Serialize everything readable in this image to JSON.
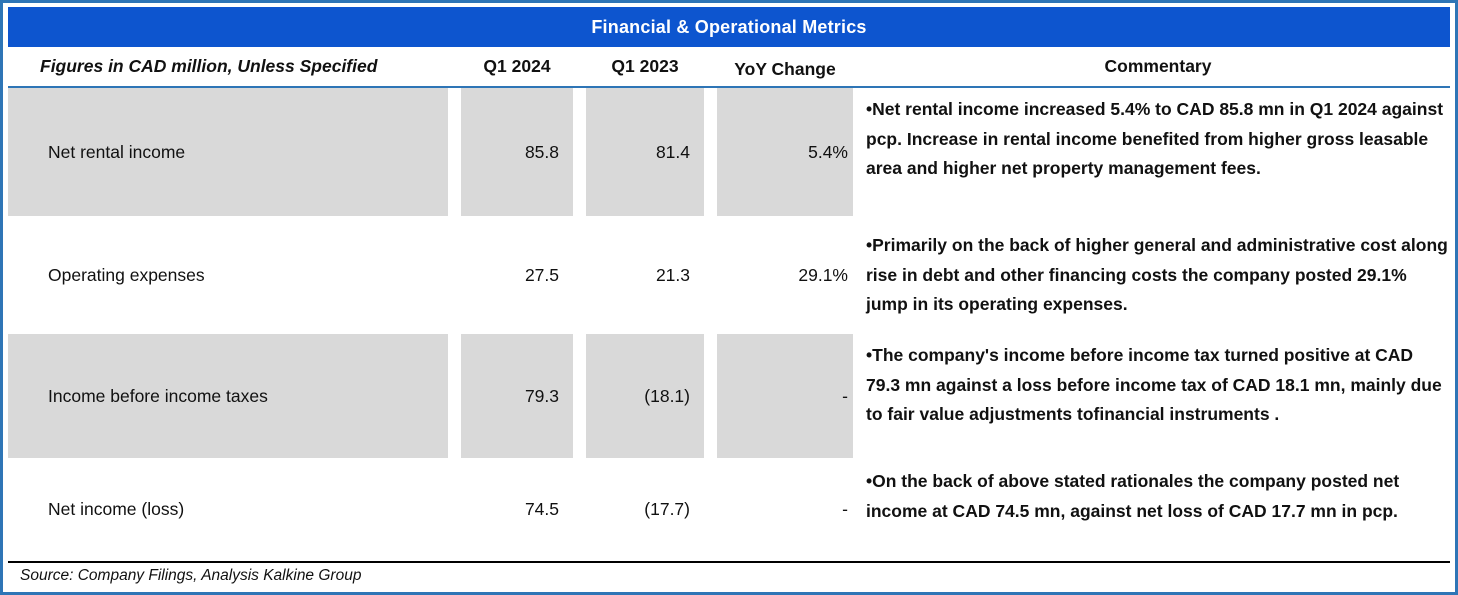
{
  "title": "Financial & Operational Metrics",
  "header": {
    "note": "Figures in CAD million, Unless Specified",
    "col_q1_2024": "Q1 2024",
    "col_q1_2023": "Q1 2023",
    "col_yoy": "YoY Change",
    "col_commentary": "Commentary"
  },
  "rows": [
    {
      "metric": "Net rental income",
      "q1_2024": "85.8",
      "q1_2023": "81.4",
      "yoy": "5.4%",
      "commentary": "•Net rental income increased 5.4% to CAD 85.8 mn in Q1 2024 against pcp. Increase in rental income benefited from higher gross leasable area and higher net property management fees."
    },
    {
      "metric": "Operating expenses",
      "q1_2024": "27.5",
      "q1_2023": "21.3",
      "yoy": "29.1%",
      "commentary": "•Primarily on the back of higher general and administrative cost along rise in debt and other financing costs the company posted 29.1% jump in its operating expenses."
    },
    {
      "metric": "Income before income taxes",
      "q1_2024": "79.3",
      "q1_2023": "(18.1)",
      "yoy": "-",
      "commentary": "•The company's income before income tax turned positive at CAD 79.3 mn against a loss before income tax of CAD 18.1 mn, mainly due to fair value adjustments tofinancial instruments ."
    },
    {
      "metric": "Net income (loss)",
      "q1_2024": "74.5",
      "q1_2023": "(17.7)",
      "yoy": "-",
      "commentary": "•On the back of above stated rationales the company posted net income at CAD 74.5 mn, against net loss of CAD 17.7 mn in pcp."
    }
  ],
  "footer": {
    "source": "Source: Company Filings, Analysis Kalkine Group"
  },
  "colors": {
    "title_bg": "#0d55cf",
    "accent_line": "#2e75b6",
    "row_shade": "#d9d9d9",
    "frame_border": "#2e75b6",
    "text": "#111111"
  }
}
